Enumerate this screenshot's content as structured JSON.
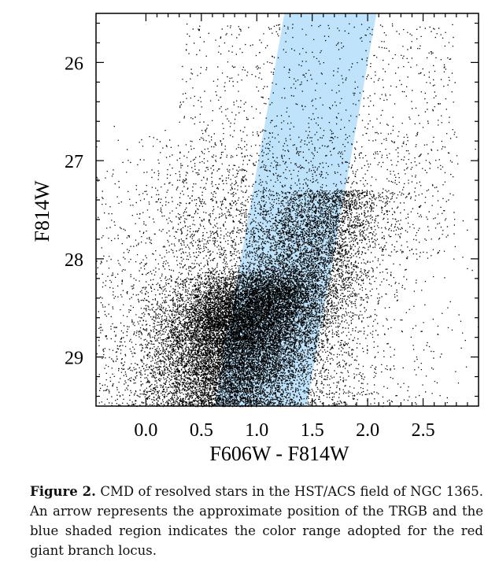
{
  "chart_data": {
    "type": "scatter",
    "title": "",
    "xlabel": "F606W - F814W",
    "ylabel": "F814W",
    "xlim": [
      -0.45,
      3.0
    ],
    "ylim": [
      29.5,
      25.5
    ],
    "y_inverted": true,
    "x_ticks": [
      0.0,
      0.5,
      1.0,
      1.5,
      2.0,
      2.5
    ],
    "x_tick_labels": [
      "0.0",
      "0.5",
      "1.0",
      "1.5",
      "2.0",
      "2.5"
    ],
    "y_ticks": [
      26,
      27,
      28,
      29
    ],
    "y_tick_labels": [
      "26",
      "27",
      "28",
      "29"
    ],
    "grid": false,
    "series": [
      {
        "marker_color": "#000000",
        "point_count_approx": 30000,
        "distribution_description": "dense cloud of resolved stars; density peaks near color 0.4-1.2, magnitude 28.3-29.3, and follows a red giant branch locus rising to brighter magnitudes at redder colors"
      }
    ],
    "shaded_region": {
      "color": "#bfe3fb",
      "polygon_data": [
        [
          0.62,
          29.5
        ],
        [
          1.45,
          29.5
        ],
        [
          2.08,
          25.5
        ],
        [
          1.25,
          25.5
        ]
      ]
    }
  },
  "caption": {
    "label": "Figure 2.",
    "text": "CMD of resolved stars in the HST/ACS field of NGC 1365. An arrow represents the approximate position of the TRGB and the blue shaded region indicates the color range adopted for the red giant branch locus."
  }
}
